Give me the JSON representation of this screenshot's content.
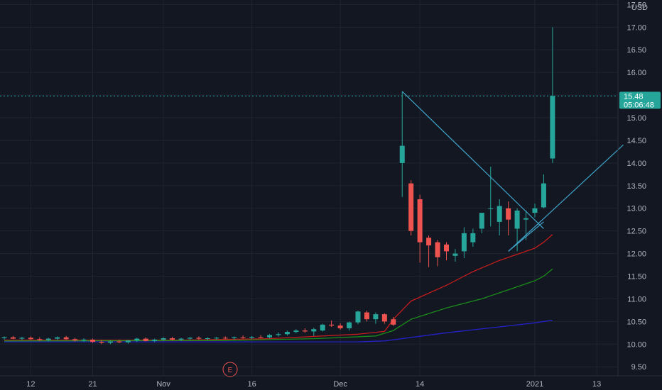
{
  "currency_label": "USD",
  "price_badge": {
    "value": "15.48",
    "countdown": "05:06:48"
  },
  "earnings_marker": "E",
  "colors": {
    "background": "#131722",
    "grid": "#1f2431",
    "up": "#26a69a",
    "down": "#ef5350",
    "trendline": "#3fa3c8",
    "ma_fast": "#c31d1d",
    "ma_mid": "#1b8a1b",
    "ma_slow": "#2222c8",
    "badge": "#26a69a"
  },
  "chart_data": {
    "type": "candlestick",
    "ylim": [
      9.3,
      17.6
    ],
    "y_ticks": [
      "9.50",
      "10.00",
      "10.50",
      "11.00",
      "11.50",
      "12.00",
      "12.50",
      "13.00",
      "13.50",
      "14.00",
      "14.50",
      "15.00",
      "15.50",
      "16.00",
      "16.50",
      "17.00",
      "17.50"
    ],
    "x_ticks": [
      {
        "label": "12",
        "bar": 3
      },
      {
        "label": "21",
        "bar": 10
      },
      {
        "label": "Nov",
        "bar": 18
      },
      {
        "label": "16",
        "bar": 28
      },
      {
        "label": "Dec",
        "bar": 38
      },
      {
        "label": "14",
        "bar": 47
      },
      {
        "label": "2021",
        "bar": 60
      },
      {
        "label": "13",
        "bar": 67
      }
    ],
    "candles": [
      [
        10.13,
        10.17,
        10.1,
        10.15
      ],
      [
        10.15,
        10.18,
        10.11,
        10.12
      ],
      [
        10.12,
        10.16,
        10.09,
        10.14
      ],
      [
        10.14,
        10.17,
        10.1,
        10.11
      ],
      [
        10.11,
        10.15,
        10.07,
        10.09
      ],
      [
        10.09,
        10.14,
        10.06,
        10.12
      ],
      [
        10.12,
        10.17,
        10.09,
        10.15
      ],
      [
        10.15,
        10.18,
        10.1,
        10.11
      ],
      [
        10.11,
        10.14,
        10.06,
        10.08
      ],
      [
        10.08,
        10.13,
        10.05,
        10.1
      ],
      [
        10.1,
        10.12,
        10.03,
        10.05
      ],
      [
        10.05,
        10.09,
        10.0,
        10.03
      ],
      [
        10.03,
        10.08,
        10.0,
        10.06
      ],
      [
        10.06,
        10.1,
        10.02,
        10.04
      ],
      [
        10.04,
        10.09,
        10.01,
        10.08
      ],
      [
        10.08,
        10.14,
        10.05,
        10.12
      ],
      [
        10.12,
        10.15,
        10.06,
        10.07
      ],
      [
        10.07,
        10.12,
        10.04,
        10.1
      ],
      [
        10.1,
        10.15,
        10.07,
        10.13
      ],
      [
        10.13,
        10.16,
        10.08,
        10.1
      ],
      [
        10.1,
        10.14,
        10.07,
        10.12
      ],
      [
        10.12,
        10.16,
        10.09,
        10.14
      ],
      [
        10.14,
        10.17,
        10.1,
        10.12
      ],
      [
        10.12,
        10.15,
        10.09,
        10.13
      ],
      [
        10.13,
        10.16,
        10.1,
        10.14
      ],
      [
        10.14,
        10.17,
        10.11,
        10.13
      ],
      [
        10.13,
        10.17,
        10.1,
        10.15
      ],
      [
        10.15,
        10.19,
        10.12,
        10.14
      ],
      [
        10.14,
        10.18,
        10.11,
        10.16
      ],
      [
        10.16,
        10.2,
        10.13,
        10.15
      ],
      [
        10.15,
        10.22,
        10.13,
        10.2
      ],
      [
        10.2,
        10.26,
        10.17,
        10.22
      ],
      [
        10.22,
        10.3,
        10.19,
        10.27
      ],
      [
        10.27,
        10.33,
        10.24,
        10.3
      ],
      [
        10.3,
        10.35,
        10.25,
        10.28
      ],
      [
        10.28,
        10.36,
        10.18,
        10.33
      ],
      [
        10.3,
        10.45,
        10.28,
        10.43
      ],
      [
        10.43,
        10.52,
        10.38,
        10.41
      ],
      [
        10.41,
        10.46,
        10.32,
        10.35
      ],
      [
        10.35,
        10.5,
        10.3,
        10.48
      ],
      [
        10.48,
        10.74,
        10.44,
        10.72
      ],
      [
        10.7,
        10.74,
        10.5,
        10.55
      ],
      [
        10.55,
        10.7,
        10.45,
        10.66
      ],
      [
        10.66,
        10.68,
        10.45,
        10.5
      ],
      [
        10.55,
        10.6,
        10.4,
        10.43
      ],
      [
        14.0,
        15.58,
        13.25,
        14.38
      ],
      [
        13.55,
        13.62,
        12.4,
        12.5
      ],
      [
        13.2,
        13.3,
        11.8,
        12.25
      ],
      [
        12.35,
        12.4,
        11.7,
        12.18
      ],
      [
        12.25,
        12.3,
        11.72,
        11.92
      ],
      [
        12.2,
        12.25,
        11.85,
        12.05
      ],
      [
        11.95,
        12.1,
        11.82,
        12.0
      ],
      [
        12.05,
        12.58,
        11.9,
        12.45
      ],
      [
        12.25,
        12.55,
        12.15,
        12.45
      ],
      [
        12.55,
        12.9,
        12.45,
        12.9
      ],
      [
        13.0,
        13.92,
        12.6,
        13.0
      ],
      [
        12.7,
        13.2,
        12.4,
        13.05
      ],
      [
        13.0,
        13.15,
        12.4,
        12.75
      ],
      [
        12.55,
        13.0,
        12.05,
        12.95
      ],
      [
        12.75,
        12.95,
        12.3,
        12.78
      ],
      [
        12.9,
        13.1,
        12.8,
        13.0
      ],
      [
        13.02,
        13.75,
        13.0,
        13.55
      ],
      [
        14.1,
        17.0,
        14.0,
        15.48
      ]
    ],
    "moving_averages": [
      {
        "color": "#c31d1d",
        "points": [
          [
            0,
            10.09
          ],
          [
            20,
            10.09
          ],
          [
            30,
            10.12
          ],
          [
            40,
            10.22
          ],
          [
            43,
            10.28
          ],
          [
            44,
            10.55
          ],
          [
            46,
            10.95
          ],
          [
            50,
            11.3
          ],
          [
            53,
            11.6
          ],
          [
            56,
            11.85
          ],
          [
            59,
            12.05
          ],
          [
            60,
            12.12
          ],
          [
            61,
            12.25
          ],
          [
            62,
            12.42
          ]
        ]
      },
      {
        "color": "#1b8a1b",
        "points": [
          [
            0,
            10.07
          ],
          [
            25,
            10.08
          ],
          [
            35,
            10.12
          ],
          [
            42,
            10.18
          ],
          [
            44,
            10.3
          ],
          [
            46,
            10.55
          ],
          [
            50,
            10.8
          ],
          [
            54,
            11.0
          ],
          [
            57,
            11.2
          ],
          [
            60,
            11.4
          ],
          [
            61,
            11.5
          ],
          [
            62,
            11.66
          ]
        ]
      },
      {
        "color": "#2222c8",
        "points": [
          [
            0,
            10.05
          ],
          [
            30,
            10.05
          ],
          [
            40,
            10.05
          ],
          [
            43,
            10.07
          ],
          [
            50,
            10.25
          ],
          [
            56,
            10.38
          ],
          [
            60,
            10.47
          ],
          [
            62,
            10.53
          ]
        ]
      }
    ],
    "trendlines": [
      {
        "from": [
          45,
          15.58
        ],
        "to": [
          61,
          12.55
        ]
      },
      {
        "from": [
          57,
          12.05
        ],
        "to": [
          70,
          14.4
        ]
      },
      {
        "from": [
          57,
          12.05
        ],
        "to": [
          61,
          12.7
        ]
      }
    ],
    "last_price": 15.48
  }
}
